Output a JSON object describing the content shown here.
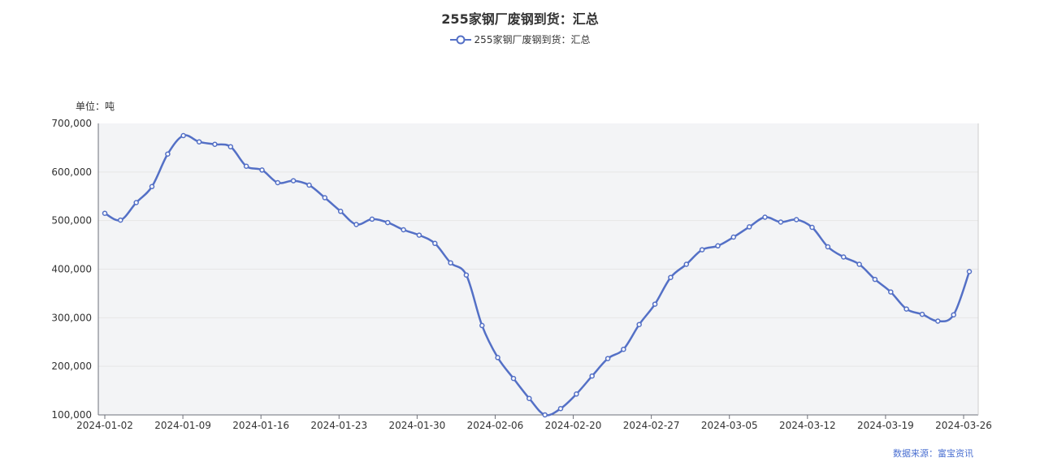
{
  "chart_data": {
    "type": "line",
    "title": "255家钢厂废钢到货：汇总",
    "unit_label": "单位：吨",
    "source": "数据来源：富宝资讯",
    "x_tick_labels": [
      "2024-01-02",
      "2024-01-09",
      "2024-01-16",
      "2024-01-23",
      "2024-01-30",
      "2024-02-06",
      "2024-02-20",
      "2024-02-27",
      "2024-03-05",
      "2024-03-12",
      "2024-03-19",
      "2024-03-26"
    ],
    "y_tick_labels": [
      "100,000",
      "200,000",
      "300,000",
      "400,000",
      "500,000",
      "600,000",
      "700,000"
    ],
    "ylim": [
      100000,
      700000
    ],
    "grid": true,
    "legend_position": "top",
    "colors": {
      "series": "#5470c6",
      "plot_bg": "#f3f4f6",
      "grid": "#e6e6e6",
      "axis": "#6e7079",
      "source": "#4a6fd1"
    },
    "series": [
      {
        "name": "255家钢厂废钢到货：汇总",
        "values": [
          515000,
          501000,
          537000,
          570000,
          637000,
          675000,
          662000,
          657000,
          652000,
          612000,
          604000,
          578000,
          582000,
          573000,
          547000,
          519000,
          492000,
          503000,
          496000,
          481000,
          470000,
          453000,
          413000,
          388000,
          284000,
          218000,
          175000,
          134000,
          100000,
          113000,
          143000,
          180000,
          216000,
          235000,
          286000,
          328000,
          383000,
          410000,
          440000,
          448000,
          466000,
          487000,
          507000,
          497000,
          502000,
          486000,
          446000,
          425000,
          410000,
          379000,
          353000,
          318000,
          307000,
          293000,
          306000,
          395000
        ]
      }
    ]
  }
}
